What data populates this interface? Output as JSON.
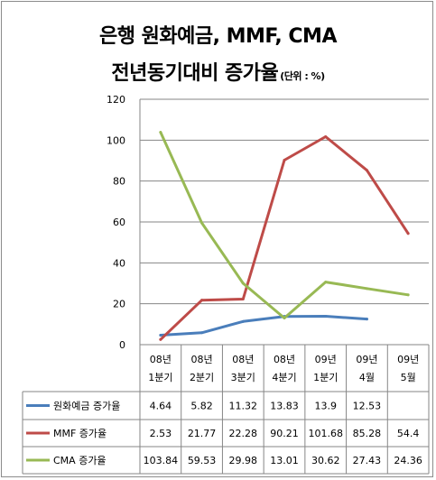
{
  "chart_data": {
    "type": "line",
    "title": "은행 원화예금, MMF, CMA",
    "subtitle": "전년동기대비 증가율",
    "unit": "(단위 : %)",
    "ylim": [
      0,
      120
    ],
    "yticks": [
      0,
      20,
      40,
      60,
      80,
      100,
      120
    ],
    "grid": true,
    "legend": "data-table-left",
    "categories": [
      [
        "08년",
        "1분기"
      ],
      [
        "08년",
        "2분기"
      ],
      [
        "08년",
        "3분기"
      ],
      [
        "08년",
        "4분기"
      ],
      [
        "09년",
        "1분기"
      ],
      [
        "09년",
        "4월"
      ],
      [
        "09년",
        "5월"
      ]
    ],
    "series": [
      {
        "name": "원화예금 증가율",
        "color": "#4a7ebb",
        "values": [
          4.64,
          5.82,
          11.32,
          13.83,
          13.9,
          12.53,
          null
        ]
      },
      {
        "name": "MMF 증가율",
        "color": "#be4b48",
        "values": [
          2.53,
          21.77,
          22.28,
          90.21,
          101.68,
          85.28,
          54.4
        ]
      },
      {
        "name": "CMA 증가율",
        "color": "#98b954",
        "values": [
          103.84,
          59.53,
          29.98,
          13.01,
          30.62,
          27.43,
          24.36
        ]
      }
    ]
  }
}
